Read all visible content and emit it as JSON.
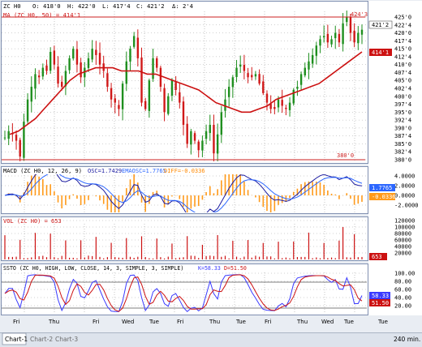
{
  "colors": {
    "up": "#1f8f1f",
    "down": "#d01818",
    "ma": "#cc1111",
    "level": "#cc2222",
    "macd": "#1a1aa0",
    "signal": "#2b66ff",
    "hist_pos": "#ff9a1a",
    "hist_neg": "#ff9a1a",
    "volume": "#cc1111",
    "stoch_k": "#3a3aff",
    "stoch_d": "#cc1111",
    "pane_border": "#7f8fb0",
    "grid": "#8c8c8c"
  },
  "price_pane": {
    "header": {
      "symbol": "ZC H0",
      "open": "O: 418'0",
      "high": "H: 422'0",
      "low": "L: 417'4",
      "close": "C: 421'2",
      "change": "Δ: 2'4"
    },
    "ma_label": "MA (ZC H0, 50) = 414'1",
    "axis_labels": [
      "425'0",
      "422'4",
      "420'0",
      "417'4",
      "415'0",
      "412'4",
      "410'0",
      "407'4",
      "405'0",
      "402'4",
      "400'0",
      "397'4",
      "395'0",
      "392'4",
      "390'0",
      "387'4",
      "385'0",
      "382'4",
      "380'0"
    ],
    "last_price_tag": "421'2",
    "ma_price_tag": "414'1",
    "high_level_label": "424'3",
    "low_level_label": "380'0"
  },
  "macd_pane": {
    "header": "MACD (ZC H0, 12, 26, 9)",
    "osc": "OSC=1.7429",
    "emaosc": "EMAOSC=1.7765",
    "diff": "DIFF=-0.0336",
    "axis_labels": [
      "4.0000",
      "2.0000",
      "0.0000",
      "-2.0000"
    ],
    "tag_signal": "1.7765",
    "tag_diff": "-0.0336"
  },
  "volume_pane": {
    "header": "VOL (ZC H0) = 653",
    "axis_labels": [
      "120000",
      "100000",
      "80000",
      "60000",
      "40000",
      "20000"
    ],
    "tag": "653"
  },
  "stoch_pane": {
    "header": "SSTO (ZC H0, HIGH, LOW, CLOSE, 14, 3, SIMPLE, 3, SIMPLE)",
    "k": "K=58.33",
    "d": "D=51.50",
    "axis_labels": [
      "100.00",
      "80.00",
      "60.00",
      "40.00",
      "20.00"
    ],
    "tag_k": "58.33",
    "tag_d": "51.50"
  },
  "x_axis_labels": [
    "Fri",
    "Thu",
    "Fri",
    "Wed",
    "Tue",
    "Fri",
    "Thu",
    "Tue",
    "Fri",
    "Thu",
    "Wed",
    "Tue",
    "Tue"
  ],
  "bottom_bar": {
    "tabs": [
      "Chart-1",
      "Chart-2",
      "Chart-3"
    ],
    "interval": "240 min."
  },
  "chart_data": {
    "type": "candlestick",
    "ylim": [
      380,
      425
    ],
    "close_series_approx": [
      387,
      389,
      388,
      386,
      381,
      392,
      399,
      403,
      407,
      406,
      409,
      408,
      414,
      410,
      404,
      403,
      408,
      412,
      415,
      410,
      406,
      409,
      412,
      415,
      413,
      410,
      408,
      403,
      399,
      398,
      396,
      404,
      411,
      415,
      419,
      412,
      398,
      396,
      405,
      412,
      409,
      403,
      395,
      400,
      405,
      402,
      398,
      391,
      385,
      389,
      386,
      383,
      386,
      389,
      391,
      382,
      388,
      395,
      399,
      403,
      406,
      409,
      410,
      408,
      406,
      406,
      407,
      404,
      401,
      398,
      396,
      396,
      399,
      397,
      396,
      398,
      402,
      403,
      407,
      409,
      411,
      413,
      416,
      418,
      419,
      417,
      418,
      420,
      417,
      423,
      425,
      420,
      417,
      420,
      421
    ],
    "ma_50_approx": [
      388,
      389,
      391,
      393,
      396,
      399,
      402,
      405,
      407,
      408,
      409,
      409,
      409,
      408,
      408,
      408,
      407,
      407,
      406,
      405,
      404,
      403,
      402,
      400,
      398,
      397,
      396,
      395,
      395,
      396,
      397,
      399,
      400,
      401,
      402,
      403,
      404,
      406,
      408,
      410,
      412,
      414
    ],
    "markers": {
      "high": "424'3",
      "low": "380'0"
    }
  }
}
